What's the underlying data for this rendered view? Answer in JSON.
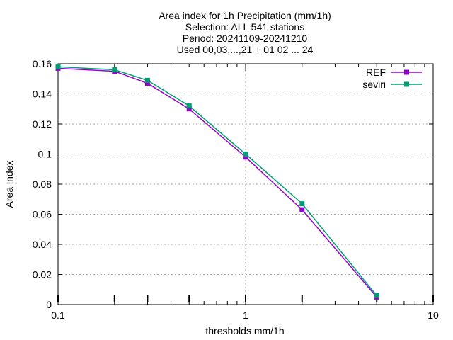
{
  "chart_data": {
    "type": "line",
    "title_lines": [
      "Area index  for 1h Precipitation (mm/1h)",
      "Selection: ALL    541 stations",
      "Period: 20241109-20241210",
      "Used 00,03,...,21 + 01 02 ... 24"
    ],
    "xlabel": "thresholds mm/1h",
    "ylabel": "Area index",
    "x_scale": "log",
    "xlim": [
      0.1,
      10
    ],
    "ylim": [
      0,
      0.16
    ],
    "x_ticks": [
      0.1,
      1,
      10
    ],
    "x_tick_labels": [
      "0.1",
      "1",
      "10"
    ],
    "y_ticks": [
      0,
      0.02,
      0.04,
      0.06,
      0.08,
      0.1,
      0.12,
      0.14,
      0.16
    ],
    "y_tick_labels": [
      "0",
      "0.02",
      "0.04",
      "0.06",
      "0.08",
      "0.1",
      "0.12",
      "0.14",
      "0.16"
    ],
    "grid": true,
    "legend_position": "top-right",
    "x": [
      0.1,
      0.2,
      0.3,
      0.5,
      1,
      2,
      5
    ],
    "series": [
      {
        "name": "REF",
        "color": "#9400d3",
        "values": [
          0.157,
          0.155,
          0.147,
          0.13,
          0.098,
          0.063,
          0.005
        ]
      },
      {
        "name": "seviri",
        "color": "#009e73",
        "values": [
          0.158,
          0.156,
          0.149,
          0.132,
          0.1,
          0.067,
          0.006
        ]
      }
    ],
    "bottom_marker_x": [
      0.1,
      0.2,
      0.3,
      0.5,
      1,
      2,
      5,
      10
    ]
  }
}
